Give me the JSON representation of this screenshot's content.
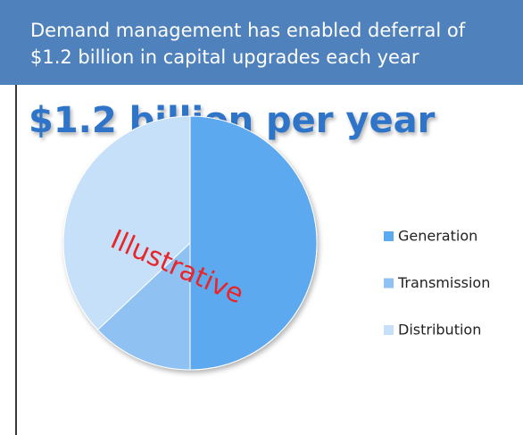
{
  "header": {
    "lines": [
      "Demand management has enabled deferral of",
      "$1.2 billion in capital upgrades each year"
    ]
  },
  "chart_data": {
    "type": "pie",
    "title": "$1.2 billion per year",
    "categories": [
      "Generation",
      "Transmission",
      "Distribution"
    ],
    "values": [
      50,
      13,
      37
    ],
    "colors": [
      "#5ba9ef",
      "#8fc1f2",
      "#c5e0f8"
    ],
    "annotation": "Illustrative",
    "legend": "right"
  }
}
